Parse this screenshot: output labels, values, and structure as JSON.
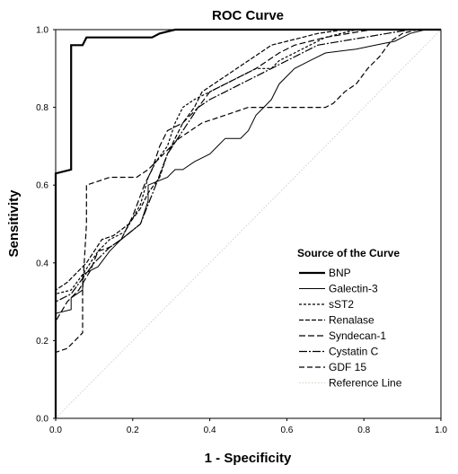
{
  "chart_data": {
    "type": "line",
    "title": "ROC Curve",
    "xlabel": "1 - Specificity",
    "ylabel": "Sensitivity",
    "xlim": [
      0,
      1
    ],
    "ylim": [
      0,
      1
    ],
    "xticks": [
      "0.0",
      "0.2",
      "0.4",
      "0.6",
      "0.8",
      "1.0"
    ],
    "yticks": [
      "0.0",
      "0.2",
      "0.4",
      "0.6",
      "0.8",
      "1.0"
    ],
    "grid": false,
    "legend_title": "Source of the Curve",
    "legend_position": "lower-right",
    "series": [
      {
        "name": "BNP",
        "color": "#000000",
        "points": [
          [
            0,
            0
          ],
          [
            0,
            0.63
          ],
          [
            0.04,
            0.64
          ],
          [
            0.04,
            0.96
          ],
          [
            0.07,
            0.96
          ],
          [
            0.08,
            0.98
          ],
          [
            0.14,
            0.98
          ],
          [
            0.19,
            0.98
          ],
          [
            0.25,
            0.98
          ],
          [
            0.27,
            0.99
          ],
          [
            0.31,
            1.0
          ],
          [
            1.0,
            1.0
          ]
        ]
      },
      {
        "name": "Galectin-3",
        "color": "#000000",
        "points": [
          [
            0,
            0
          ],
          [
            0,
            0.27
          ],
          [
            0.04,
            0.28
          ],
          [
            0.04,
            0.31
          ],
          [
            0.07,
            0.33
          ],
          [
            0.07,
            0.37
          ],
          [
            0.11,
            0.39
          ],
          [
            0.14,
            0.43
          ],
          [
            0.17,
            0.46
          ],
          [
            0.22,
            0.5
          ],
          [
            0.24,
            0.56
          ],
          [
            0.24,
            0.6
          ],
          [
            0.29,
            0.62
          ],
          [
            0.31,
            0.64
          ],
          [
            0.33,
            0.64
          ],
          [
            0.36,
            0.66
          ],
          [
            0.4,
            0.68
          ],
          [
            0.42,
            0.7
          ],
          [
            0.44,
            0.72
          ],
          [
            0.48,
            0.72
          ],
          [
            0.5,
            0.74
          ],
          [
            0.52,
            0.78
          ],
          [
            0.54,
            0.8
          ],
          [
            0.56,
            0.82
          ],
          [
            0.58,
            0.86
          ],
          [
            0.62,
            0.9
          ],
          [
            0.66,
            0.92
          ],
          [
            0.7,
            0.94
          ],
          [
            0.78,
            0.95
          ],
          [
            0.83,
            0.96
          ],
          [
            0.88,
            0.97
          ],
          [
            0.92,
            0.99
          ],
          [
            0.96,
            1.0
          ],
          [
            1.0,
            1.0
          ]
        ]
      },
      {
        "name": "sST2",
        "color": "#000000",
        "points": [
          [
            0,
            0
          ],
          [
            0,
            0.32
          ],
          [
            0.04,
            0.33
          ],
          [
            0.07,
            0.37
          ],
          [
            0.11,
            0.43
          ],
          [
            0.14,
            0.46
          ],
          [
            0.18,
            0.48
          ],
          [
            0.22,
            0.55
          ],
          [
            0.24,
            0.62
          ],
          [
            0.26,
            0.66
          ],
          [
            0.29,
            0.7
          ],
          [
            0.31,
            0.76
          ],
          [
            0.33,
            0.8
          ],
          [
            0.36,
            0.82
          ],
          [
            0.4,
            0.84
          ],
          [
            0.44,
            0.86
          ],
          [
            0.48,
            0.88
          ],
          [
            0.52,
            0.9
          ],
          [
            0.56,
            0.9
          ],
          [
            0.58,
            0.92
          ],
          [
            0.62,
            0.94
          ],
          [
            0.66,
            0.96
          ],
          [
            0.7,
            0.98
          ],
          [
            0.74,
            0.99
          ],
          [
            0.78,
            1.0
          ],
          [
            1.0,
            1.0
          ]
        ]
      },
      {
        "name": "Renalase",
        "color": "#000000",
        "points": [
          [
            0,
            0
          ],
          [
            0,
            0.33
          ],
          [
            0.03,
            0.35
          ],
          [
            0.05,
            0.37
          ],
          [
            0.08,
            0.4
          ],
          [
            0.1,
            0.43
          ],
          [
            0.12,
            0.46
          ],
          [
            0.15,
            0.47
          ],
          [
            0.19,
            0.5
          ],
          [
            0.22,
            0.54
          ],
          [
            0.24,
            0.58
          ],
          [
            0.27,
            0.62
          ],
          [
            0.29,
            0.68
          ],
          [
            0.31,
            0.72
          ],
          [
            0.33,
            0.76
          ],
          [
            0.36,
            0.8
          ],
          [
            0.38,
            0.84
          ],
          [
            0.41,
            0.86
          ],
          [
            0.44,
            0.88
          ],
          [
            0.47,
            0.9
          ],
          [
            0.5,
            0.92
          ],
          [
            0.53,
            0.94
          ],
          [
            0.56,
            0.96
          ],
          [
            0.6,
            0.97
          ],
          [
            0.64,
            0.98
          ],
          [
            0.68,
            0.99
          ],
          [
            0.75,
            1.0
          ],
          [
            1.0,
            1.0
          ]
        ]
      },
      {
        "name": "Syndecan-1",
        "color": "#000000",
        "points": [
          [
            0,
            0
          ],
          [
            0,
            0.25
          ],
          [
            0.03,
            0.3
          ],
          [
            0.06,
            0.33
          ],
          [
            0.09,
            0.38
          ],
          [
            0.11,
            0.43
          ],
          [
            0.14,
            0.44
          ],
          [
            0.17,
            0.46
          ],
          [
            0.2,
            0.52
          ],
          [
            0.23,
            0.6
          ],
          [
            0.25,
            0.64
          ],
          [
            0.27,
            0.7
          ],
          [
            0.29,
            0.74
          ],
          [
            0.33,
            0.76
          ],
          [
            0.37,
            0.8
          ],
          [
            0.4,
            0.84
          ],
          [
            0.44,
            0.86
          ],
          [
            0.48,
            0.88
          ],
          [
            0.52,
            0.9
          ],
          [
            0.55,
            0.92
          ],
          [
            0.58,
            0.94
          ],
          [
            0.62,
            0.96
          ],
          [
            0.66,
            0.97
          ],
          [
            0.7,
            0.98
          ],
          [
            0.76,
            0.99
          ],
          [
            0.82,
            1.0
          ],
          [
            1.0,
            1.0
          ]
        ]
      },
      {
        "name": "Cystatin C",
        "color": "#000000",
        "points": [
          [
            0,
            0
          ],
          [
            0,
            0.3
          ],
          [
            0.04,
            0.32
          ],
          [
            0.07,
            0.36
          ],
          [
            0.1,
            0.4
          ],
          [
            0.14,
            0.44
          ],
          [
            0.17,
            0.46
          ],
          [
            0.22,
            0.5
          ],
          [
            0.26,
            0.6
          ],
          [
            0.29,
            0.68
          ],
          [
            0.33,
            0.74
          ],
          [
            0.37,
            0.8
          ],
          [
            0.4,
            0.82
          ],
          [
            0.44,
            0.84
          ],
          [
            0.48,
            0.86
          ],
          [
            0.52,
            0.88
          ],
          [
            0.56,
            0.9
          ],
          [
            0.6,
            0.92
          ],
          [
            0.64,
            0.94
          ],
          [
            0.68,
            0.96
          ],
          [
            0.74,
            0.97
          ],
          [
            0.8,
            0.98
          ],
          [
            0.86,
            0.99
          ],
          [
            0.92,
            1.0
          ],
          [
            1.0,
            1.0
          ]
        ]
      },
      {
        "name": "GDF 15",
        "color": "#000000",
        "points": [
          [
            0,
            0
          ],
          [
            0,
            0.17
          ],
          [
            0.03,
            0.18
          ],
          [
            0.05,
            0.2
          ],
          [
            0.07,
            0.22
          ],
          [
            0.07,
            0.33
          ],
          [
            0.08,
            0.5
          ],
          [
            0.08,
            0.6
          ],
          [
            0.11,
            0.61
          ],
          [
            0.14,
            0.62
          ],
          [
            0.21,
            0.62
          ],
          [
            0.24,
            0.64
          ],
          [
            0.28,
            0.68
          ],
          [
            0.32,
            0.72
          ],
          [
            0.38,
            0.76
          ],
          [
            0.44,
            0.78
          ],
          [
            0.5,
            0.8
          ],
          [
            0.58,
            0.8
          ],
          [
            0.64,
            0.8
          ],
          [
            0.7,
            0.8
          ],
          [
            0.72,
            0.81
          ],
          [
            0.75,
            0.84
          ],
          [
            0.78,
            0.86
          ],
          [
            0.81,
            0.9
          ],
          [
            0.84,
            0.93
          ],
          [
            0.87,
            0.97
          ],
          [
            0.9,
            0.99
          ],
          [
            0.94,
            1.0
          ],
          [
            1.0,
            1.0
          ]
        ]
      },
      {
        "name": "Reference Line",
        "color": "#d8cfc0",
        "points": [
          [
            0,
            0
          ],
          [
            1,
            1
          ]
        ]
      }
    ]
  }
}
